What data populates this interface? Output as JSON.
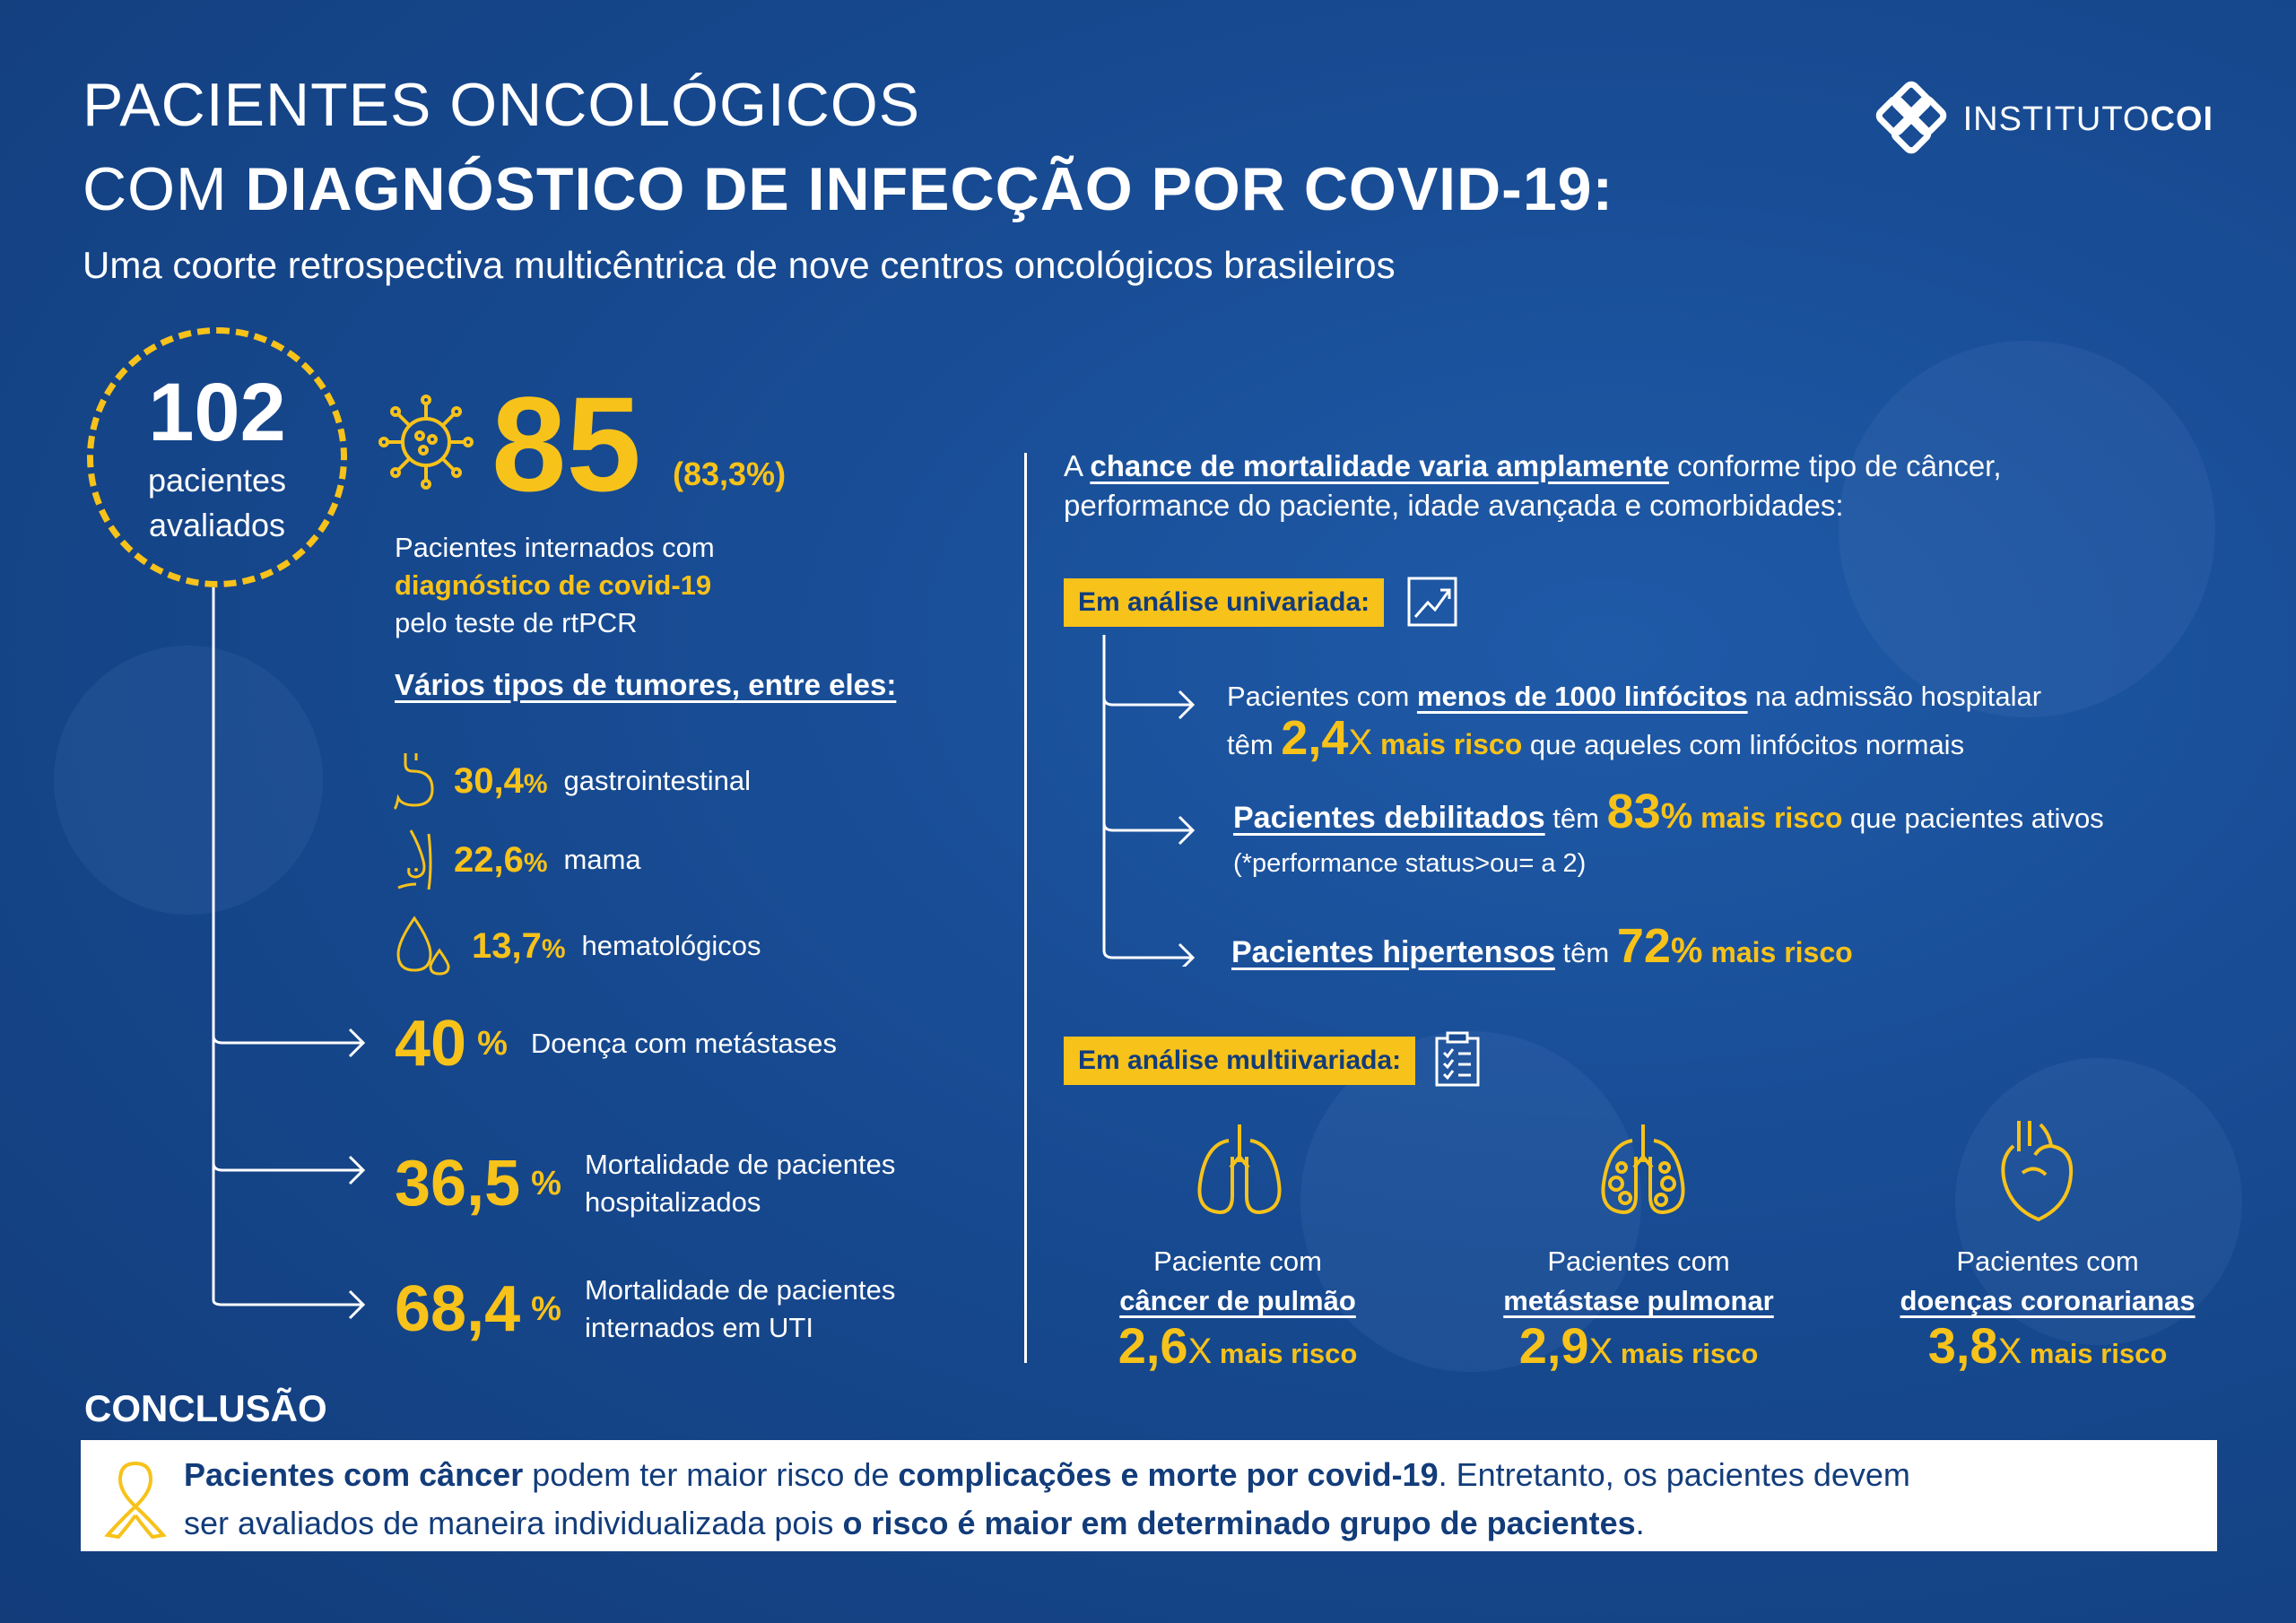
{
  "header": {
    "title_line1": "PACIENTES ONCOLÓGICOS",
    "title_line2_pre": "COM ",
    "title_line2_bold": "DIAGNÓSTICO DE INFECÇÃO POR COVID-19:",
    "subtitle": "Uma coorte retrospectiva multicêntrica de nove centros oncológicos brasileiros",
    "logo_light": "INSTITUTO",
    "logo_bold": "COI"
  },
  "evaluated": {
    "number": "102",
    "label_line1": "pacientes",
    "label_line2": "avaliados"
  },
  "hospitalized": {
    "number": "85",
    "percent": "(83,3%)",
    "line1": "Pacientes internados com",
    "line2": "diagnóstico de covid-19",
    "line3": "pelo teste de rtPCR"
  },
  "tumors": {
    "heading": "Vários tipos de tumores, entre eles:",
    "items": [
      {
        "value": "30,4",
        "unit": "%",
        "label": "gastrointestinal",
        "icon": "stomach-icon"
      },
      {
        "value": "22,6",
        "unit": "%",
        "label": "mama",
        "icon": "breast-icon"
      },
      {
        "value": "13,7",
        "unit": "%",
        "label": "hematológicos",
        "icon": "blood-drop-icon"
      }
    ]
  },
  "stats": [
    {
      "value": "40",
      "unit": "%",
      "label_line1": "Doença com metástases",
      "label_line2": ""
    },
    {
      "value": "36,5",
      "unit": "%",
      "label_line1": "Mortalidade de pacientes",
      "label_line2": "hospitalizados"
    },
    {
      "value": "68,4",
      "unit": "%",
      "label_line1": "Mortalidade de pacientes",
      "label_line2": "internados em UTI"
    }
  ],
  "right": {
    "intro_a": "A ",
    "intro_u": "chance de mortalidade varia amplamente",
    "intro_b": " conforme tipo de câncer,",
    "intro_line2": "performance do paciente, idade avançada e comorbidades:",
    "univariate_tag": "Em análise univariada:",
    "multivariate_tag": "Em análise multiivariada:",
    "univariate": [
      {
        "pre": "Pacientes com ",
        "u": "menos de 1000 linfócitos",
        "post": " na admissão hospitalar",
        "l2_pre": "têm ",
        "big": "2,4",
        "big_unit": "X",
        "risk": " mais risco",
        "l2_post": " que aqueles com linfócitos normais"
      },
      {
        "u": "Pacientes debilitados",
        "mid": " têm ",
        "big": "83",
        "big_unit": "%",
        "risk": " mais risco",
        "post": " que pacientes ativos",
        "note": "(*performance status>ou= a 2)"
      },
      {
        "u": "Pacientes hipertensos",
        "mid": " têm ",
        "big": "72",
        "big_unit": "%",
        "risk": " mais risco"
      }
    ],
    "multivariate": [
      {
        "line1": "Paciente com",
        "line2": "câncer de pulmão",
        "value": "2,6",
        "unit": "X",
        "risk": "mais risco",
        "icon": "lungs-icon"
      },
      {
        "line1": "Pacientes com",
        "line2": "metástase pulmonar",
        "value": "2,9",
        "unit": "X",
        "risk": "mais risco",
        "icon": "lungs-metastasis-icon"
      },
      {
        "line1": "Pacientes com",
        "line2": "doenças coronarianas",
        "value": "3,8",
        "unit": "X",
        "risk": "mais risco",
        "icon": "heart-icon"
      }
    ]
  },
  "conclusion": {
    "title": "CONCLUSÃO",
    "b1": "Pacientes com câncer",
    "t1": " podem ter maior risco de ",
    "b2": "complicações e morte por covid-19",
    "t2": ". Entretanto, os pacientes devem",
    "t3": "ser avaliados de maneira individualizada pois ",
    "b3": "o risco é maior em determinado grupo de pacientes",
    "t4": "."
  },
  "colors": {
    "background": "#174a91",
    "accent": "#f7c21a",
    "text": "#ffffff",
    "box_text": "#123c7a"
  }
}
